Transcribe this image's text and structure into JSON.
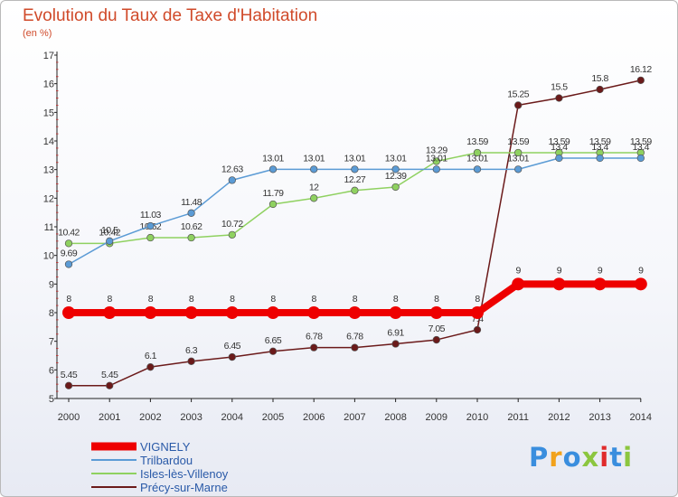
{
  "title": "Evolution du Taux de Taxe d'Habitation",
  "subtitle": "(en %)",
  "logo_text": "Proxiti",
  "logo_colors": [
    "#3a8ede",
    "#f2a21b",
    "#3a8ede",
    "#8cc63f",
    "#e02b2b",
    "#3a8ede",
    "#8cc63f"
  ],
  "chart_data": {
    "type": "line",
    "x": [
      "2000",
      "2001",
      "2002",
      "2003",
      "2004",
      "2005",
      "2006",
      "2007",
      "2008",
      "2009",
      "2010",
      "2011",
      "2012",
      "2013",
      "2014"
    ],
    "ylim": [
      5,
      17
    ],
    "yticks": [
      "5",
      "6",
      "7",
      "8",
      "9",
      "10",
      "11",
      "12",
      "13",
      "14",
      "15",
      "16",
      "17"
    ],
    "grid": false,
    "legend_position": "bottom-left",
    "series": [
      {
        "name": "Précy-sur-Marne",
        "color": "#6b1a1a",
        "line_width": 1.5,
        "marker_r": 3.8,
        "values": [
          5.45,
          5.45,
          6.1,
          6.3,
          6.45,
          6.65,
          6.78,
          6.78,
          6.91,
          7.05,
          7.4,
          15.25,
          15.5,
          15.8,
          16.12
        ],
        "labels": [
          "5.45",
          "5.45",
          "6.1",
          "6.3",
          "6.45",
          "6.65",
          "6.78",
          "6.78",
          "6.91",
          "7.05",
          "7.4",
          "15.25",
          "15.5",
          "15.8",
          "16.12"
        ]
      },
      {
        "name": "Isles-lès-Villenoy",
        "color": "#8fd160",
        "line_width": 1.5,
        "marker_r": 3.8,
        "values": [
          10.42,
          10.42,
          10.62,
          10.62,
          10.72,
          11.79,
          12,
          12.27,
          12.39,
          13.29,
          13.59,
          13.59,
          13.59,
          13.59,
          13.59
        ],
        "labels": [
          "10.42",
          "10.42",
          "10.62",
          "10.62",
          "10.72",
          "11.79",
          "12",
          "12.27",
          "12.39",
          "13.29",
          "13.59",
          "13.59",
          "13.59",
          "13.59",
          "13.59"
        ]
      },
      {
        "name": "Trilbardou",
        "color": "#5b9bd5",
        "line_width": 1.5,
        "marker_r": 3.8,
        "values": [
          9.69,
          10.5,
          11.03,
          11.48,
          12.63,
          13.01,
          13.01,
          13.01,
          13.01,
          13.01,
          13.01,
          13.01,
          13.4,
          13.4,
          13.4
        ],
        "labels": [
          "9.69",
          "10.5",
          "11.03",
          "11.48",
          "12.63",
          "13.01",
          "13.01",
          "13.01",
          "13.01",
          "13.01",
          "13.01",
          "13.01",
          "13.4",
          "13.4",
          "13.4"
        ]
      },
      {
        "name": "VIGNELY",
        "color": "#ee0000",
        "line_width": 8,
        "marker_r": 7,
        "values": [
          8,
          8,
          8,
          8,
          8,
          8,
          8,
          8,
          8,
          8,
          8,
          9,
          9,
          9,
          9
        ],
        "labels": [
          "8",
          "8",
          "8",
          "8",
          "8",
          "8",
          "8",
          "8",
          "8",
          "8",
          "8",
          "9",
          "9",
          "9",
          "9"
        ]
      }
    ],
    "legend": [
      {
        "name": "VIGNELY",
        "color": "#ee0000",
        "thick": true
      },
      {
        "name": "Trilbardou",
        "color": "#5b9bd5",
        "thick": false
      },
      {
        "name": "Isles-lès-Villenoy",
        "color": "#8fd160",
        "thick": false
      },
      {
        "name": "Précy-sur-Marne",
        "color": "#6b1a1a",
        "thick": false
      }
    ]
  }
}
